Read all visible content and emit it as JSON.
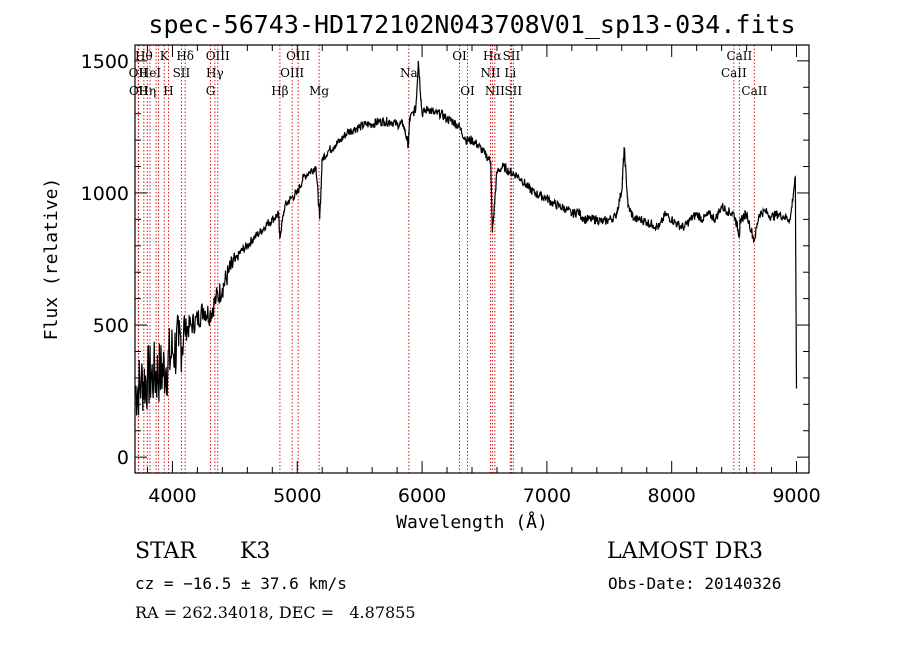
{
  "chart_data": {
    "type": "line",
    "title": "spec-56743-HD172102N043708V01_sp13-034.fits",
    "xlabel": "Wavelength (Å)",
    "ylabel": "Flux (relative)",
    "xlim": [
      3700,
      9100
    ],
    "ylim": [
      -60,
      1560
    ],
    "xticks": [
      4000,
      5000,
      6000,
      7000,
      8000,
      9000
    ],
    "yticks": [
      0,
      500,
      1000,
      1500
    ],
    "grid": false,
    "series": [
      {
        "x": [
          3700,
          3750,
          3800,
          3850,
          3900,
          3950,
          4000,
          4050,
          4100,
          4150,
          4200,
          4250,
          4300,
          4350,
          4400,
          4450,
          4500,
          4550,
          4600,
          4650,
          4700,
          4750,
          4800,
          4850,
          4860,
          4900,
          4950,
          5000,
          5050,
          5100,
          5150,
          5180,
          5200,
          5250,
          5300,
          5350,
          5400,
          5450,
          5500,
          5550,
          5600,
          5650,
          5700,
          5750,
          5800,
          5850,
          5890,
          5900,
          5950,
          5970,
          6000,
          6050,
          6100,
          6150,
          6200,
          6250,
          6300,
          6350,
          6400,
          6450,
          6500,
          6550,
          6563,
          6600,
          6650,
          6700,
          6750,
          6800,
          6850,
          6900,
          6950,
          7000,
          7050,
          7100,
          7150,
          7200,
          7250,
          7300,
          7350,
          7400,
          7450,
          7500,
          7550,
          7600,
          7620,
          7650,
          7700,
          7750,
          7800,
          7850,
          7900,
          7950,
          8000,
          8050,
          8100,
          8150,
          8200,
          8250,
          8300,
          8350,
          8400,
          8450,
          8500,
          8542,
          8550,
          8600,
          8662,
          8700,
          8750,
          8800,
          8850,
          8900,
          8950,
          8990,
          9000
        ],
        "y": [
          250,
          280,
          300,
          310,
          320,
          340,
          400,
          420,
          480,
          500,
          520,
          560,
          540,
          600,
          640,
          700,
          740,
          780,
          800,
          830,
          850,
          880,
          900,
          920,
          830,
          950,
          980,
          1000,
          1060,
          1080,
          1100,
          900,
          1130,
          1160,
          1180,
          1200,
          1230,
          1240,
          1250,
          1260,
          1260,
          1270,
          1270,
          1270,
          1260,
          1260,
          1180,
          1280,
          1320,
          1500,
          1300,
          1320,
          1300,
          1300,
          1280,
          1270,
          1250,
          1200,
          1200,
          1180,
          1150,
          1120,
          850,
          1080,
          1100,
          1080,
          1070,
          1050,
          1020,
          1000,
          990,
          980,
          960,
          950,
          940,
          920,
          930,
          900,
          900,
          900,
          890,
          900,
          910,
          1010,
          1170,
          950,
          900,
          900,
          890,
          880,
          870,
          920,
          900,
          880,
          870,
          900,
          920,
          900,
          920,
          900,
          950,
          930,
          920,
          840,
          900,
          920,
          820,
          920,
          930,
          910,
          920,
          910,
          900,
          1060,
          260
        ]
      }
    ],
    "line_markers": [
      {
        "x": 3726,
        "label": "OII",
        "row": 1
      },
      {
        "x": 3729,
        "label": "OII",
        "row": 2
      },
      {
        "x": 3771,
        "label": "Hθ",
        "row": 0
      },
      {
        "x": 3798,
        "label": "Hη",
        "row": 2
      },
      {
        "x": 3820,
        "label": "HeI",
        "row": 1
      },
      {
        "x": 3869,
        "label": "",
        "row": -1
      },
      {
        "x": 3889,
        "label": "",
        "row": -1
      },
      {
        "x": 3934,
        "label": "K",
        "row": 0
      },
      {
        "x": 3968,
        "label": "H",
        "row": 2
      },
      {
        "x": 4072,
        "label": "SII",
        "row": 1
      },
      {
        "x": 4102,
        "label": "Hδ",
        "row": 0
      },
      {
        "x": 4305,
        "label": "G",
        "row": 2
      },
      {
        "x": 4340,
        "label": "Hγ",
        "row": 1
      },
      {
        "x": 4363,
        "label": "OIII",
        "row": 0
      },
      {
        "x": 4861,
        "label": "Hβ",
        "row": 2
      },
      {
        "x": 4959,
        "label": "OIII",
        "row": 1
      },
      {
        "x": 5007,
        "label": "OIII",
        "row": 0
      },
      {
        "x": 5175,
        "label": "Mg",
        "row": 2
      },
      {
        "x": 5894,
        "label": "Na",
        "row": 1
      },
      {
        "x": 6300,
        "label": "OI",
        "row": 0
      },
      {
        "x": 6364,
        "label": "OI",
        "row": 2
      },
      {
        "x": 6548,
        "label": "NII",
        "row": 1
      },
      {
        "x": 6563,
        "label": "Hα",
        "row": 0
      },
      {
        "x": 6583,
        "label": "NII",
        "row": 2
      },
      {
        "x": 6707,
        "label": "Li",
        "row": 1
      },
      {
        "x": 6716,
        "label": "SII",
        "row": 0
      },
      {
        "x": 6731,
        "label": "SII",
        "row": 2
      },
      {
        "x": 8498,
        "label": "CaII",
        "row": 1
      },
      {
        "x": 8542,
        "label": "CaII",
        "row": 0
      },
      {
        "x": 8662,
        "label": "CaII",
        "row": 2
      }
    ]
  },
  "info": {
    "object_class": "STAR",
    "subclass": "K3",
    "survey": "LAMOST DR3",
    "cz": "cz = −16.5 ± 37.6 km/s",
    "obs_date": "Obs-Date: 20140326",
    "radec": "RA = 262.34018, DEC =   4.87855"
  },
  "colors": {
    "axis": "#000000",
    "spectrum": "#000000",
    "marker_line": "#d00000"
  }
}
